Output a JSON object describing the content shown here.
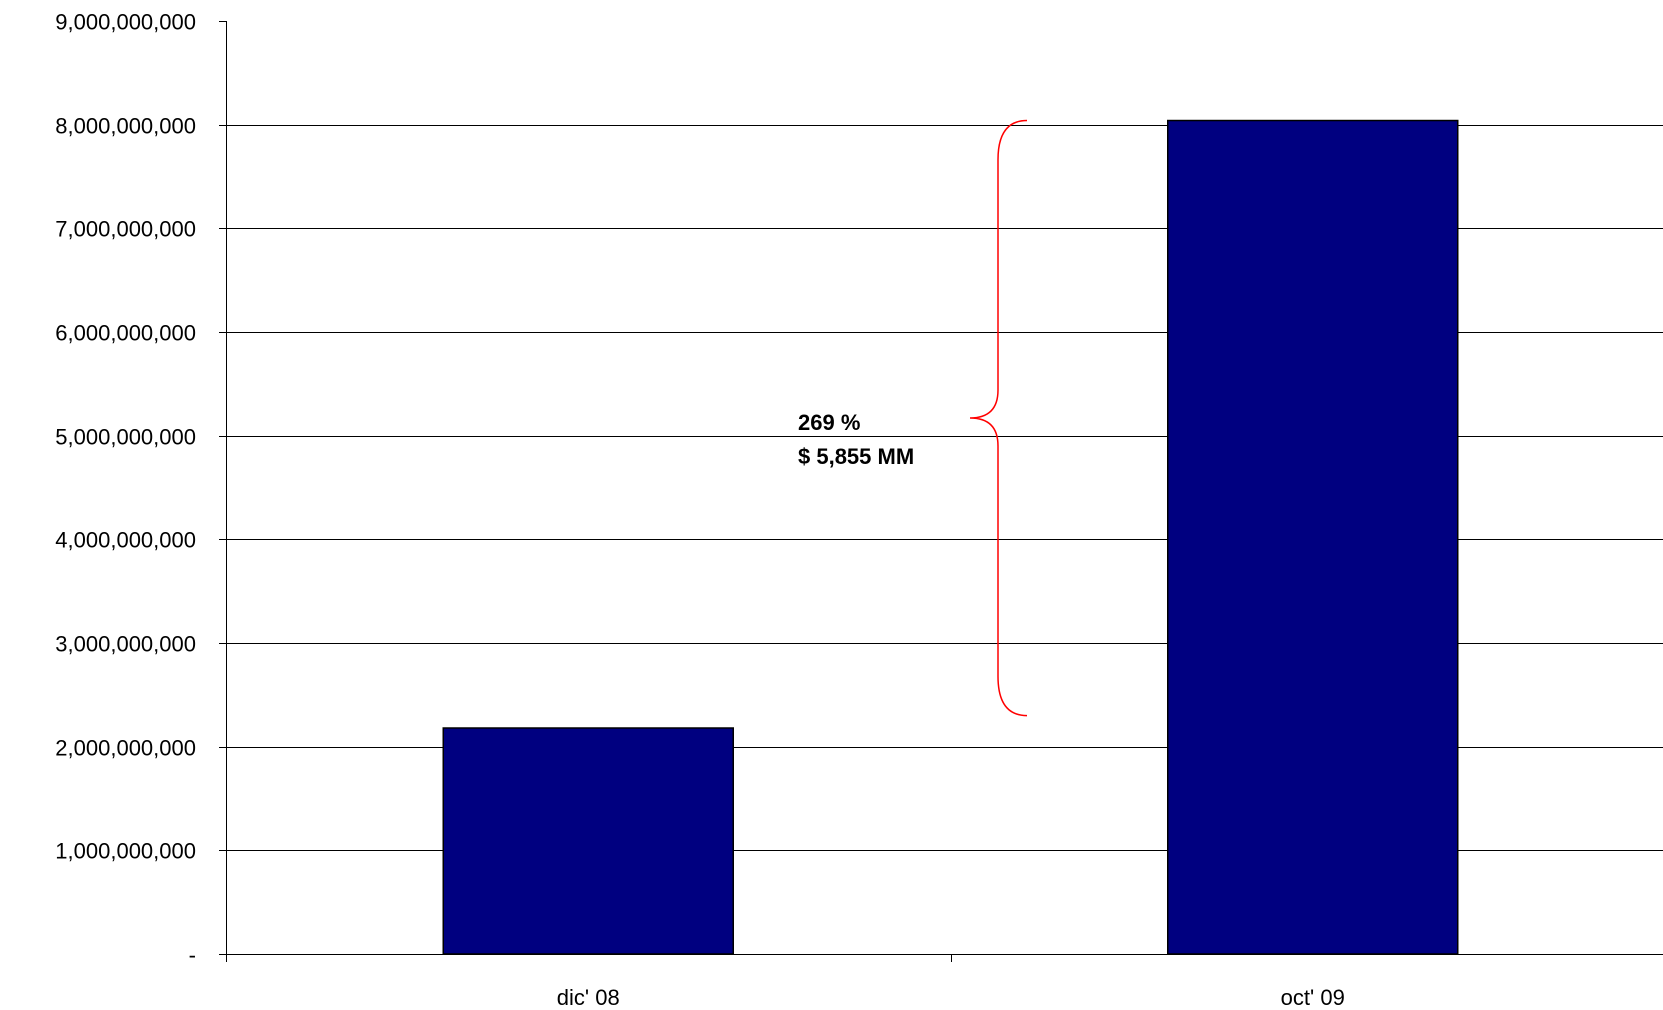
{
  "chart_data": {
    "type": "bar",
    "categories": [
      "dic' 08",
      "oct' 09"
    ],
    "values": [
      2180000000,
      8040000000
    ],
    "ylim": [
      0,
      9000000000
    ],
    "y_ticks": [
      {
        "value": 0,
        "label": "-"
      },
      {
        "value": 1000000000,
        "label": "1,000,000,000"
      },
      {
        "value": 2000000000,
        "label": "2,000,000,000"
      },
      {
        "value": 3000000000,
        "label": "3,000,000,000"
      },
      {
        "value": 4000000000,
        "label": "4,000,000,000"
      },
      {
        "value": 5000000000,
        "label": "5,000,000,000"
      },
      {
        "value": 6000000000,
        "label": "6,000,000,000"
      },
      {
        "value": 7000000000,
        "label": "7,000,000,000"
      },
      {
        "value": 8000000000,
        "label": "8,000,000,000"
      },
      {
        "value": 9000000000,
        "label": "9,000,000,000"
      }
    ],
    "grid": true,
    "colors": {
      "bar": "#000080",
      "annotation_brace": "#ff0000"
    },
    "annotation": {
      "lines": [
        "269 %",
        "$ 5,855 MM"
      ],
      "brace_from_value": 2300000000,
      "brace_to_value": 8040000000
    }
  }
}
